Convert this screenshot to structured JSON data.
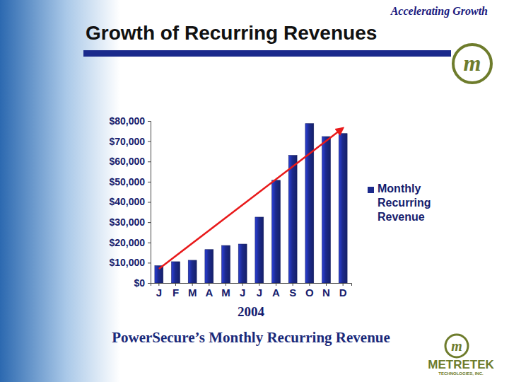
{
  "chart_data": {
    "type": "bar",
    "title": "Growth of Recurring Revenues",
    "subtitle": "PowerSecure’s Monthly Recurring Revenue",
    "x_label": "2004",
    "categories": [
      "J",
      "F",
      "M",
      "A",
      "M",
      "J",
      "J",
      "A",
      "S",
      "O",
      "N",
      "D"
    ],
    "series": [
      {
        "name": "Monthly Recurring Revenue",
        "color": "#1c2a8c",
        "values": [
          8500,
          10500,
          11200,
          16500,
          18500,
          19200,
          32500,
          50700,
          63000,
          78700,
          72300,
          73800
        ]
      }
    ],
    "ylim": [
      0,
      80000
    ],
    "yticks": [
      {
        "value": 0,
        "label": "$0"
      },
      {
        "value": 10000,
        "label": "$10,000"
      },
      {
        "value": 20000,
        "label": "$20,000"
      },
      {
        "value": 30000,
        "label": "$30,000"
      },
      {
        "value": 40000,
        "label": "$40,000"
      },
      {
        "value": 50000,
        "label": "$50,000"
      },
      {
        "value": 60000,
        "label": "$60,000"
      },
      {
        "value": 70000,
        "label": "$70,000"
      },
      {
        "value": 80000,
        "label": "$80,000"
      }
    ],
    "grid": false,
    "legend": "right",
    "trend": {
      "color": "#e8191a",
      "values": [
        7000,
        76500
      ]
    }
  },
  "slide": {
    "tagline": "Accelerating Growth",
    "logo_mark": "m",
    "company": "METRETEK",
    "company_detail": "TECHNOLOGIES, INC."
  }
}
